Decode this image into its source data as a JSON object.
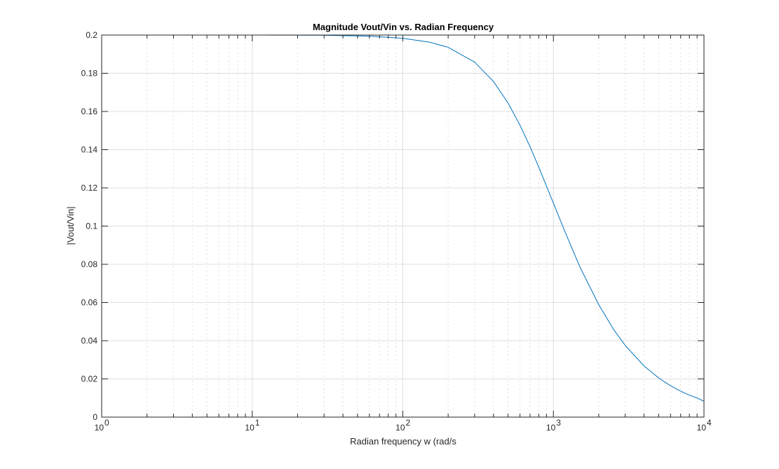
{
  "chart_data": {
    "type": "line",
    "title": "Magnitude Vout/Vin vs. Radian Frequency",
    "xlabel": "Radian frequency w (rad/s",
    "ylabel": "|Vout/Vin|",
    "x_scale": "log",
    "xlim": [
      1,
      10000
    ],
    "ylim": [
      0,
      0.2
    ],
    "grid": true,
    "minor_grid_x": true,
    "x_ticks": [
      {
        "value": 1,
        "base": "10",
        "exp": "0"
      },
      {
        "value": 10,
        "base": "10",
        "exp": "1"
      },
      {
        "value": 100,
        "base": "10",
        "exp": "2"
      },
      {
        "value": 1000,
        "base": "10",
        "exp": "3"
      },
      {
        "value": 10000,
        "base": "10",
        "exp": "4"
      }
    ],
    "y_ticks": [
      {
        "value": 0,
        "label": "0"
      },
      {
        "value": 0.02,
        "label": "0.02"
      },
      {
        "value": 0.04,
        "label": "0.04"
      },
      {
        "value": 0.06,
        "label": "0.06"
      },
      {
        "value": 0.08,
        "label": "0.08"
      },
      {
        "value": 0.1,
        "label": "0.1"
      },
      {
        "value": 0.12,
        "label": "0.12"
      },
      {
        "value": 0.14,
        "label": "0.14"
      },
      {
        "value": 0.16,
        "label": "0.16"
      },
      {
        "value": 0.18,
        "label": "0.18"
      },
      {
        "value": 0.2,
        "label": "0.2"
      }
    ],
    "series": [
      {
        "color": "#0072BD",
        "x": [
          1,
          10,
          30,
          60,
          100,
          150,
          200,
          300,
          400,
          500,
          600,
          700,
          800,
          900,
          1000,
          1200,
          1500,
          2000,
          2500,
          3000,
          4000,
          5000,
          6000,
          7000,
          8000,
          9000,
          10000
        ],
        "y": [
          0.2,
          0.2,
          0.1999,
          0.1994,
          0.1983,
          0.1963,
          0.1936,
          0.1858,
          0.1757,
          0.1644,
          0.1528,
          0.1415,
          0.1308,
          0.1209,
          0.112,
          0.0966,
          0.0786,
          0.0589,
          0.0461,
          0.0375,
          0.0268,
          0.0205,
          0.0164,
          0.0136,
          0.0115,
          0.01,
          0.0083
        ]
      }
    ]
  },
  "colors": {
    "axes": "#262626",
    "grid": "#dfdfdf",
    "line": "#0072BD"
  }
}
